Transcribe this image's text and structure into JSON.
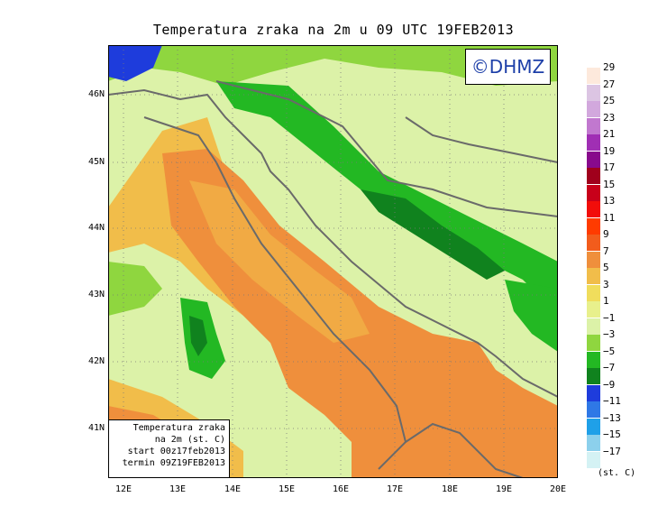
{
  "title": "Temperatura zraka na 2m u 09 UTC 19FEB2013",
  "logo": "©DHMZ",
  "info_box": {
    "line1": "Temperatura zraka",
    "line2": "na 2m (st. C)",
    "line3": "start 00z17feb2013",
    "line4": "termin 09Z19FEB2013"
  },
  "lat_labels": [
    "46N",
    "45N",
    "44N",
    "43N",
    "42N",
    "41N"
  ],
  "lon_labels": [
    "12E",
    "13E",
    "14E",
    "15E",
    "16E",
    "17E",
    "18E",
    "19E",
    "20E"
  ],
  "legend": {
    "unit": "(st. C)",
    "labels": [
      "29",
      "27",
      "25",
      "23",
      "21",
      "19",
      "17",
      "15",
      "13",
      "11",
      "9",
      "7",
      "5",
      "3",
      "1",
      "−1",
      "−3",
      "−5",
      "−7",
      "−9",
      "−11",
      "−13",
      "−15",
      "−17"
    ],
    "colors": [
      "#fde9dc",
      "#dcc5e3",
      "#d2a8dd",
      "#c178cf",
      "#a02fb4",
      "#880a8c",
      "#a0001c",
      "#c8001a",
      "#f20d0a",
      "#ff3b00",
      "#f25c1c",
      "#ef8f3c",
      "#f1bd4a",
      "#f0dd5c",
      "#e8f08c",
      "#dcf2a8",
      "#8fd63f",
      "#23b823",
      "#10821e",
      "#1e3cdc",
      "#2f78e6",
      "#1fa0e8",
      "#8cd0ec",
      "#d4f2f4"
    ]
  }
}
